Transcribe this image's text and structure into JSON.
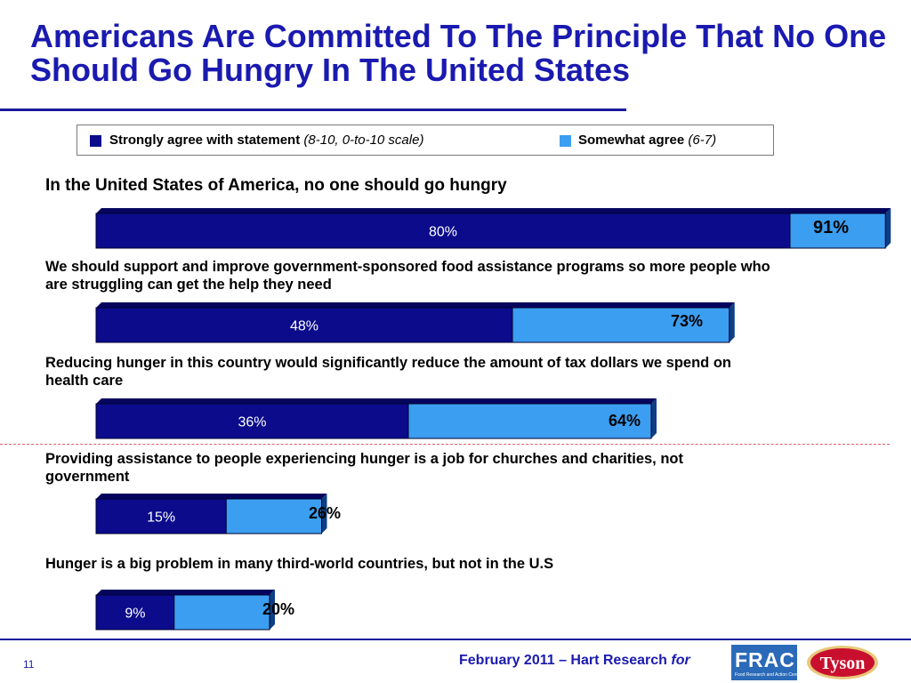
{
  "title": "Americans Are Committed To The Principle That No One Should Go Hungry In The United States",
  "legend": {
    "strong_bold": "Strongly agree with statement",
    "strong_scale": "(8-10, 0-to-10 scale)",
    "somewhat_bold": "Somewhat agree",
    "somewhat_scale": "(6-7)"
  },
  "colors": {
    "strong": "#0b0b8c",
    "somewhat": "#3b9ef0",
    "title": "#1a1ab0",
    "separator": "#e06060"
  },
  "chart_data": {
    "type": "bar",
    "orientation": "horizontal",
    "stacked": true,
    "xlim": [
      0,
      100
    ],
    "series": [
      {
        "name": "Strongly agree with statement (8-10, 0-to-10 scale)",
        "values": [
          80,
          48,
          36,
          15,
          9
        ]
      },
      {
        "name": "Somewhat agree (6-7)",
        "values": [
          11,
          25,
          28,
          11,
          11
        ]
      }
    ],
    "totals": [
      91,
      73,
      64,
      26,
      20
    ],
    "categories": [
      "In the United States of America, no one should go hungry",
      "We should support and improve government-sponsored food assistance programs so more people who are struggling can get the help they need",
      "Reducing hunger in this country would significantly reduce the amount of tax dollars we spend on health care",
      "Providing assistance to people experiencing hunger is a job for churches and charities, not government",
      "Hunger is a big problem in many third-world countries, but not in the U.S"
    ],
    "value_labels": [
      "80%",
      "48%",
      "36%",
      "15%",
      "9%"
    ],
    "total_labels": [
      "91%",
      "73%",
      "64%",
      "26%",
      "20%"
    ]
  },
  "footer": {
    "page_number": "11",
    "source": "February 2011 – Hart Research",
    "for_text": "for",
    "frac_logo": "FRAC",
    "frac_subtitle": "Food Research and Action Center",
    "tyson_logo": "Tyson"
  }
}
